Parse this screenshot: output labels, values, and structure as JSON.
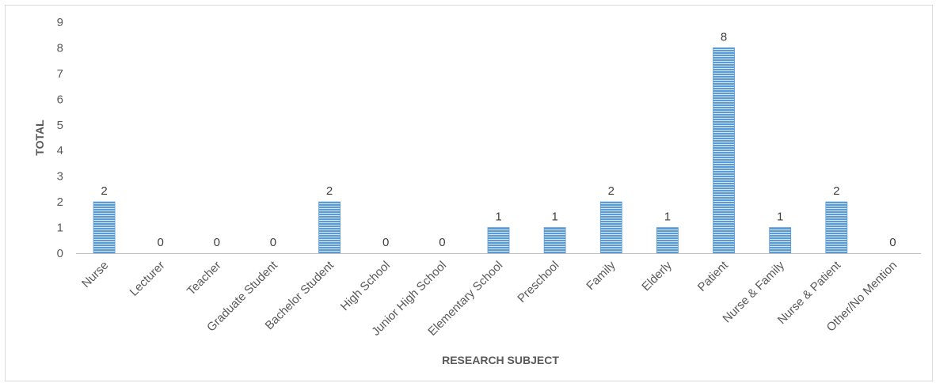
{
  "chart_data": {
    "type": "bar",
    "title": "",
    "xlabel": "RESEARCH SUBJECT",
    "ylabel": "TOTAL",
    "ylim": [
      0,
      9
    ],
    "yticks": [
      0,
      1,
      2,
      3,
      4,
      5,
      6,
      7,
      8,
      9
    ],
    "grid": false,
    "legend": "none",
    "categories": [
      "Nurse",
      "Lecturer",
      "Teacher",
      "Graduate Student",
      "Bachelor Student",
      "High School",
      "Junior High School",
      "Elementary School",
      "Preschool",
      "Family",
      "Elderly",
      "Patient",
      "Nurse & Family",
      "Nurse & Patient",
      "Other/No Mention"
    ],
    "values": [
      2,
      0,
      0,
      0,
      2,
      0,
      0,
      1,
      1,
      2,
      1,
      8,
      1,
      2,
      0
    ],
    "bar_color": "#5b9bd5",
    "bar_stripe_color": "#ffffff",
    "axis_color": "#bfbfbf"
  }
}
